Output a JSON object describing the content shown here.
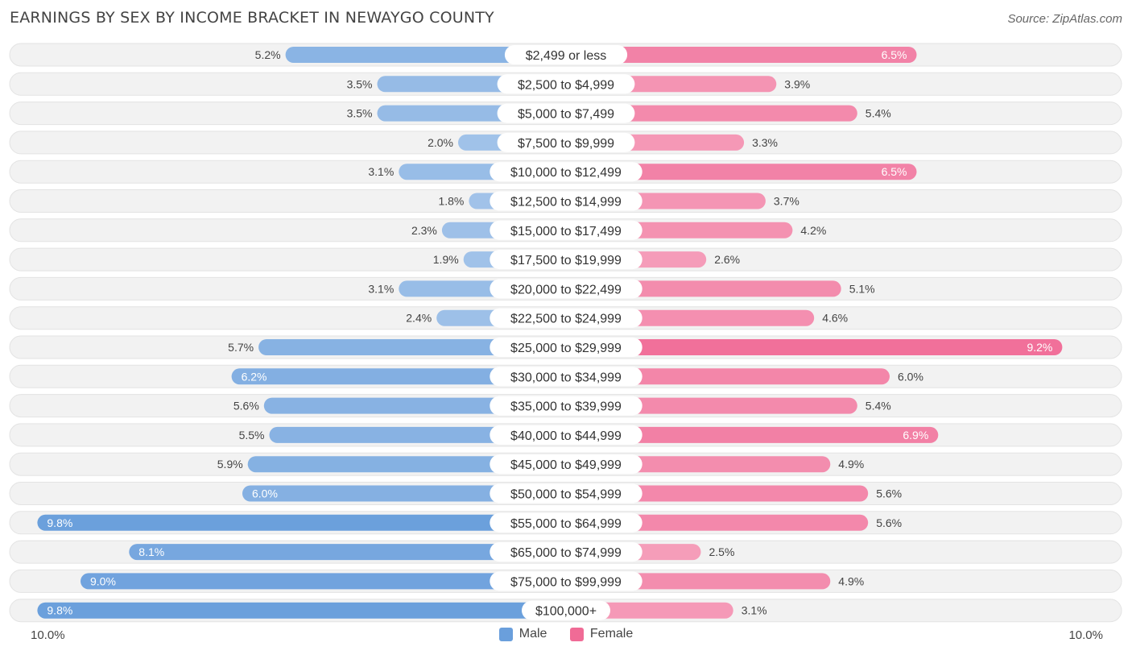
{
  "title": "EARNINGS BY SEX BY INCOME BRACKET IN NEWAYGO COUNTY",
  "source": "Source: ZipAtlas.com",
  "colors": {
    "male": "#6a9fdc",
    "female": "#f06b96",
    "track": "#f1f1f1"
  },
  "legend": {
    "male": "Male",
    "female": "Female"
  },
  "axis": {
    "left_label": "10.0%",
    "right_label": "10.0%"
  },
  "chart_data": {
    "type": "bar",
    "orientation": "horizontal-diverging",
    "title": "EARNINGS BY SEX BY INCOME BRACKET IN NEWAYGO COUNTY",
    "xlim": [
      0,
      10
    ],
    "categories": [
      "$2,499 or less",
      "$2,500 to $4,999",
      "$5,000 to $7,499",
      "$7,500 to $9,999",
      "$10,000 to $12,499",
      "$12,500 to $14,999",
      "$15,000 to $17,499",
      "$17,500 to $19,999",
      "$20,000 to $22,499",
      "$22,500 to $24,999",
      "$25,000 to $29,999",
      "$30,000 to $34,999",
      "$35,000 to $39,999",
      "$40,000 to $44,999",
      "$45,000 to $49,999",
      "$50,000 to $54,999",
      "$55,000 to $64,999",
      "$65,000 to $74,999",
      "$75,000 to $99,999",
      "$100,000+"
    ],
    "series": [
      {
        "name": "Male",
        "values": [
          5.2,
          3.5,
          3.5,
          2.0,
          3.1,
          1.8,
          2.3,
          1.9,
          3.1,
          2.4,
          5.7,
          6.2,
          5.6,
          5.5,
          5.9,
          6.0,
          9.8,
          8.1,
          9.0,
          9.8
        ],
        "labels": [
          "5.2%",
          "3.5%",
          "3.5%",
          "2.0%",
          "3.1%",
          "1.8%",
          "2.3%",
          "1.9%",
          "3.1%",
          "2.4%",
          "5.7%",
          "6.2%",
          "5.6%",
          "5.5%",
          "5.9%",
          "6.0%",
          "9.8%",
          "8.1%",
          "9.0%",
          "9.8%"
        ]
      },
      {
        "name": "Female",
        "values": [
          6.5,
          3.9,
          5.4,
          3.3,
          6.5,
          3.7,
          4.2,
          2.6,
          5.1,
          4.6,
          9.2,
          6.0,
          5.4,
          6.9,
          4.9,
          5.6,
          5.6,
          2.5,
          4.9,
          3.1
        ],
        "labels": [
          "6.5%",
          "3.9%",
          "5.4%",
          "3.3%",
          "6.5%",
          "3.7%",
          "4.2%",
          "2.6%",
          "5.1%",
          "4.6%",
          "9.2%",
          "6.0%",
          "5.4%",
          "6.9%",
          "4.9%",
          "5.6%",
          "5.6%",
          "2.5%",
          "4.9%",
          "3.1%"
        ]
      }
    ]
  }
}
